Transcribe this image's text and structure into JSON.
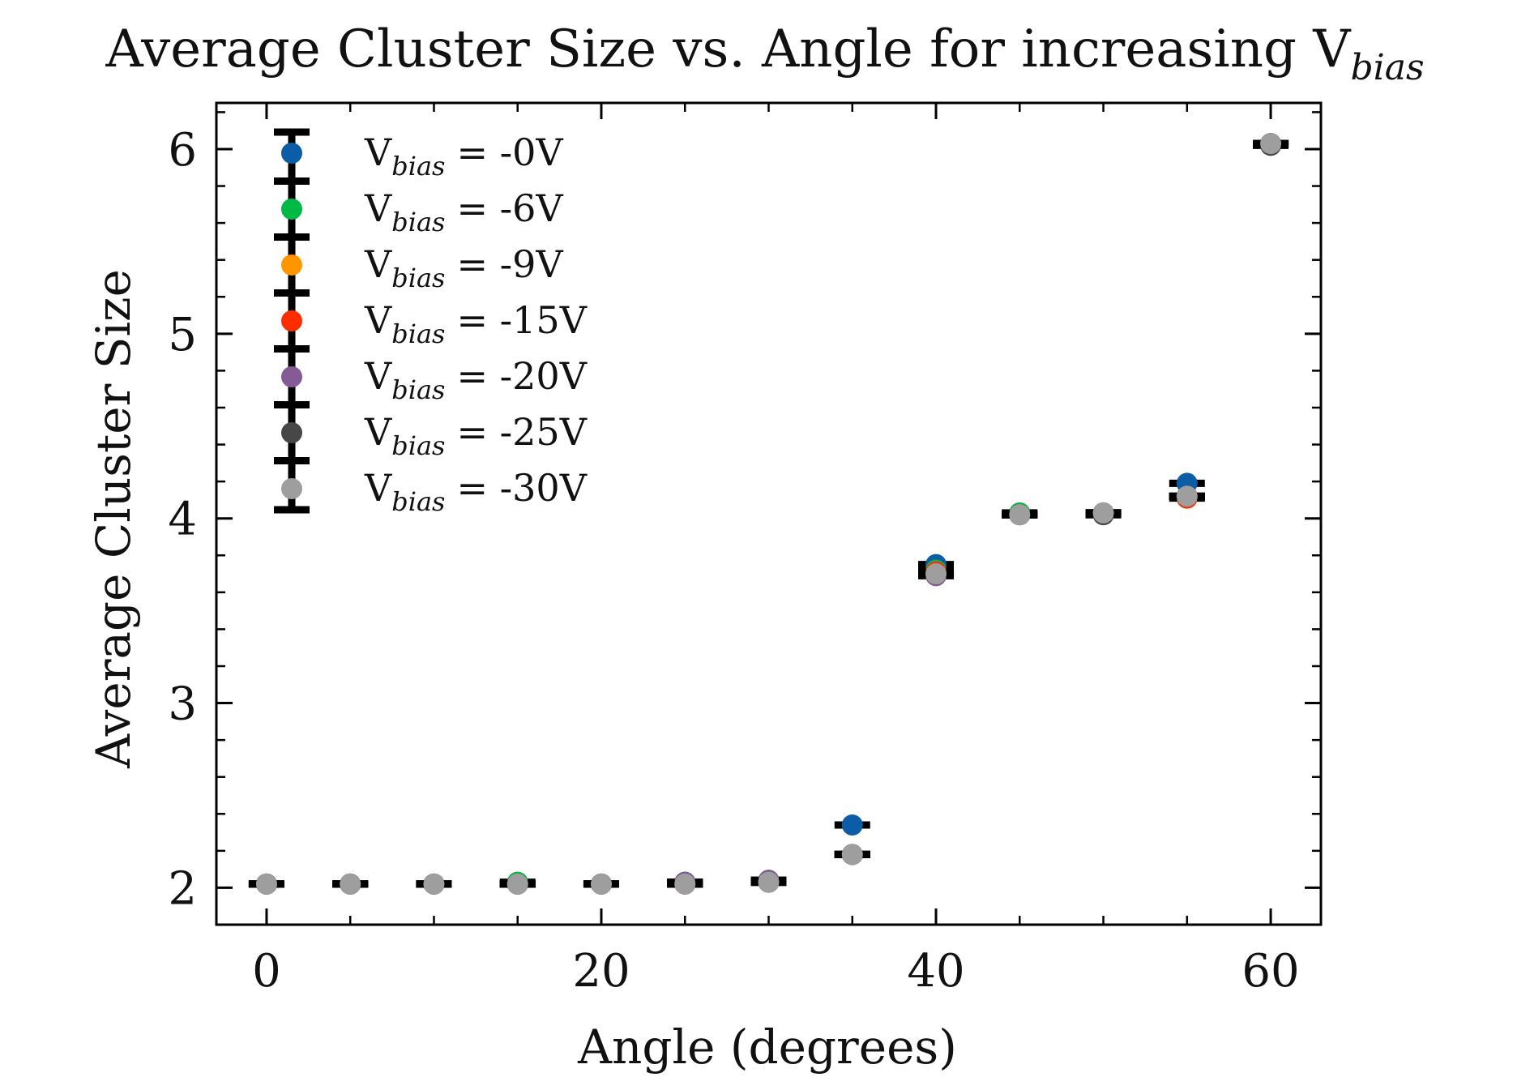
{
  "chart_data": {
    "type": "scatter",
    "title": {
      "prefix": "Average Cluster Size vs. Angle for increasing V",
      "subscript": "bias"
    },
    "xlabel": "Angle (degrees)",
    "ylabel": "Average Cluster Size",
    "xlim": [
      -3,
      63
    ],
    "ylim": [
      1.8,
      6.25
    ],
    "xticks": [
      0,
      20,
      40,
      60
    ],
    "xtick_labels": [
      "0",
      "20",
      "40",
      "60"
    ],
    "yticks": [
      2,
      3,
      4,
      5,
      6
    ],
    "ytick_labels": [
      "2",
      "3",
      "4",
      "5",
      "6"
    ],
    "grid": false,
    "legend_position": "top-left",
    "errorbars": true,
    "x": [
      0,
      5,
      10,
      15,
      20,
      25,
      30,
      35,
      40,
      45,
      50,
      55,
      60
    ],
    "series": [
      {
        "name": "V",
        "name_subscript": "bias",
        "name_suffix": "= -0V",
        "color": "#0C5DA5",
        "values": [
          2.02,
          2.02,
          2.02,
          2.02,
          2.02,
          2.03,
          2.04,
          2.34,
          3.75,
          4.02,
          4.03,
          4.19,
          6.03
        ]
      },
      {
        "name": "V",
        "name_subscript": "bias",
        "name_suffix": "= -6V",
        "color": "#00B945",
        "values": [
          2.02,
          2.02,
          2.02,
          2.03,
          2.02,
          2.03,
          2.04,
          2.18,
          3.72,
          4.03,
          4.03,
          4.12,
          6.03
        ]
      },
      {
        "name": "V",
        "name_subscript": "bias",
        "name_suffix": "= -9V",
        "color": "#FF9500",
        "values": [
          2.02,
          2.02,
          2.02,
          2.02,
          2.02,
          2.02,
          2.03,
          2.18,
          3.71,
          4.02,
          4.03,
          4.12,
          6.03
        ]
      },
      {
        "name": "V",
        "name_subscript": "bias",
        "name_suffix": "= -15V",
        "color": "#FF2C00",
        "values": [
          2.02,
          2.02,
          2.02,
          2.02,
          2.02,
          2.02,
          2.03,
          2.18,
          3.71,
          4.02,
          4.03,
          4.11,
          6.03
        ]
      },
      {
        "name": "V",
        "name_subscript": "bias",
        "name_suffix": "= -20V",
        "color": "#845B97",
        "values": [
          2.02,
          2.02,
          2.02,
          2.02,
          2.02,
          2.03,
          2.04,
          2.18,
          3.69,
          4.02,
          4.02,
          4.12,
          6.03
        ]
      },
      {
        "name": "V",
        "name_subscript": "bias",
        "name_suffix": "= -25V",
        "color": "#474747",
        "values": [
          2.02,
          2.02,
          2.02,
          2.02,
          2.02,
          2.02,
          2.03,
          2.18,
          3.7,
          4.02,
          4.02,
          4.12,
          6.02
        ]
      },
      {
        "name": "V",
        "name_subscript": "bias",
        "name_suffix": "= -30V",
        "color": "#9E9E9E",
        "values": [
          2.02,
          2.02,
          2.02,
          2.02,
          2.02,
          2.02,
          2.03,
          2.18,
          3.7,
          4.02,
          4.03,
          4.12,
          6.03
        ]
      }
    ]
  }
}
